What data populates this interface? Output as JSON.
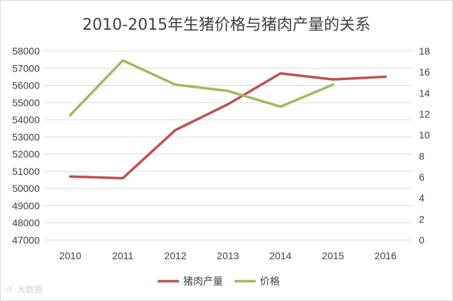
{
  "chart_data": {
    "type": "line",
    "title": "2010-2015年生猪价格与猪肉产量的关系",
    "categories": [
      "2010",
      "2011",
      "2012",
      "2013",
      "2014",
      "2015",
      "2016"
    ],
    "y_left": {
      "min": 47000,
      "max": 58000,
      "ticks": [
        "47000",
        "48000",
        "49000",
        "50000",
        "51000",
        "52000",
        "53000",
        "54000",
        "55000",
        "56000",
        "57000",
        "58000"
      ]
    },
    "y_right": {
      "min": 0,
      "max": 18,
      "ticks": [
        "0",
        "2",
        "4",
        "6",
        "8",
        "10",
        "12",
        "14",
        "16",
        "18"
      ]
    },
    "series": [
      {
        "name": "猪肉产量",
        "axis": "left",
        "color": "#c0504d",
        "values": [
          50700,
          50600,
          53400,
          54900,
          56700,
          56350,
          56500
        ]
      },
      {
        "name": "价格",
        "axis": "right",
        "color": "#9bbb59",
        "values": [
          11.9,
          17.1,
          14.8,
          14.2,
          12.7,
          14.8,
          null
        ]
      }
    ],
    "legend_position": "bottom",
    "grid": true
  },
  "watermark": "大数据"
}
